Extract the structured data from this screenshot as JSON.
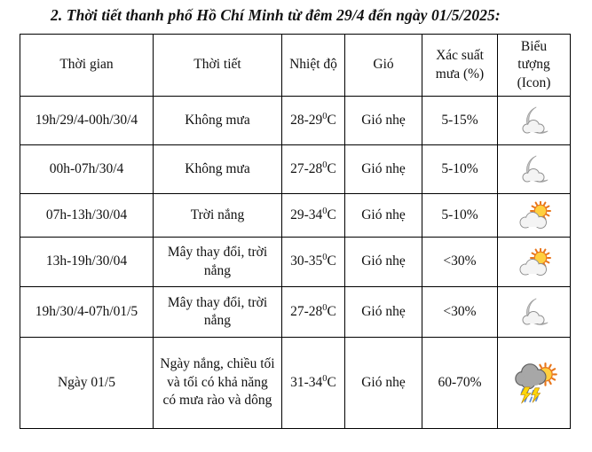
{
  "title": "2. Thời tiết thanh phố Hồ Chí Minh từ đêm 29/4 đến ngày 01/5/2025:",
  "table": {
    "headers": [
      "Thời gian",
      "Thời tiết",
      "Nhiệt độ",
      "Gió",
      "Xác suất mưa (%)",
      "Biểu tượng (Icon)"
    ],
    "rows": [
      {
        "time": "19h/29/4-00h/30/4",
        "weather": "Không mưa",
        "temp": "28-29",
        "temp_sup": "0",
        "temp_unit": "C",
        "wind": "Gió nhẹ",
        "rain_prob": "5-15%",
        "icon": "moon-cloud"
      },
      {
        "time": "00h-07h/30/4",
        "weather": "Không mưa",
        "temp": "27-28",
        "temp_sup": "0",
        "temp_unit": "C",
        "wind": "Gió nhẹ",
        "rain_prob": "5-10%",
        "icon": "moon-cloud"
      },
      {
        "time": "07h-13h/30/04",
        "weather": "Trời nắng",
        "temp": "29-34",
        "temp_sup": "0",
        "temp_unit": "C",
        "wind": "Gió nhẹ",
        "rain_prob": "5-10%",
        "icon": "sun-cloud"
      },
      {
        "time": "13h-19h/30/04",
        "weather": "Mây thay đổi, trời nắng",
        "temp": "30-35",
        "temp_sup": "0",
        "temp_unit": "C",
        "wind": "Gió nhẹ",
        "rain_prob": "<30%",
        "icon": "sun-cloud"
      },
      {
        "time": "19h/30/4-07h/01/5",
        "weather": "Mây thay đổi, trời nắng",
        "temp": "27-28",
        "temp_sup": "0",
        "temp_unit": "C",
        "wind": "Gió nhẹ",
        "rain_prob": "<30%",
        "icon": "moon-cloud"
      },
      {
        "time": "Ngày 01/5",
        "weather": "Ngày nắng, chiều tối và tối có khả năng có mưa rào và dông",
        "temp": "31-34",
        "temp_sup": "0",
        "temp_unit": "C",
        "wind": "Gió nhẹ",
        "rain_prob": "60-70%",
        "icon": "storm-sun"
      }
    ]
  },
  "icon_colors": {
    "moon": "#c6c6c6",
    "moon_edge": "#9e9e9e",
    "cloud_light": "#f4f4f4",
    "cloud_stroke": "#8f8f8f",
    "cloud_dark": "#a7a7a7",
    "cloud_dark_stroke": "#5e5e5e",
    "sun_fill": "#ffcf3f",
    "sun_stroke": "#e8761a",
    "lightning": "#ffd60a",
    "lightning_stroke": "#b8860b",
    "rain": "#5b8dd9"
  }
}
